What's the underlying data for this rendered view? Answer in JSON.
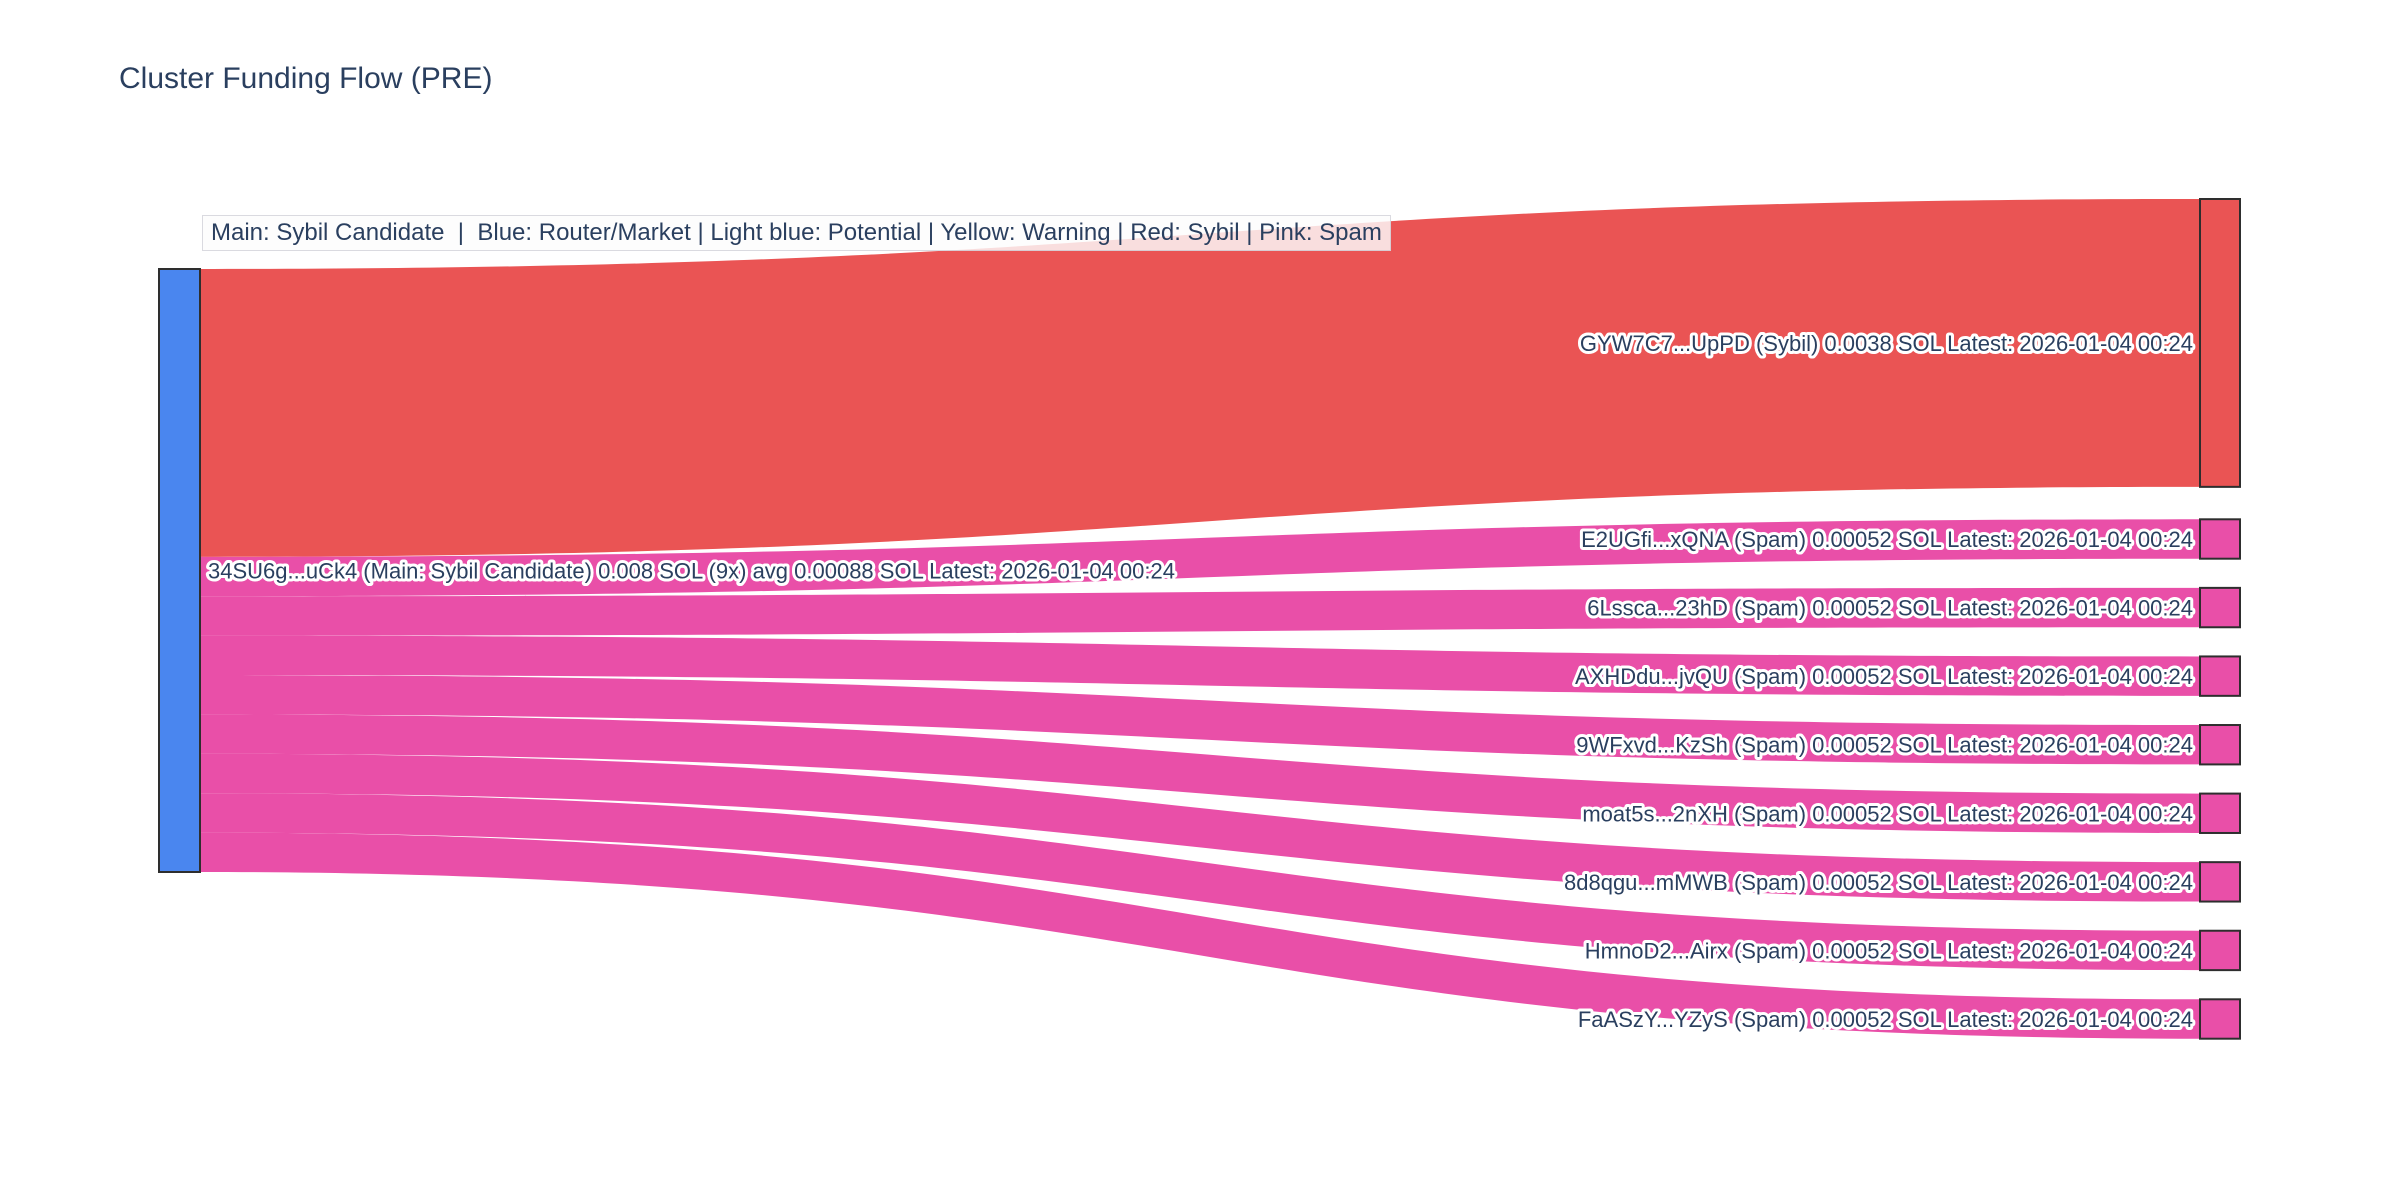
{
  "chart_data": {
    "type": "sankey",
    "title": "Cluster Funding Flow (PRE)",
    "annotation": "Main: Sybil Candidate  |  Blue: Router/Market | Light blue: Potential | Yellow: Warning | Red: Sybil | Pink: Spam",
    "unit": "SOL",
    "source": {
      "label": "34SU6g...uCk4 (Main: Sybil Candidate) 0.008 SOL (9x) avg 0.00088 SOL Latest: 2026-01-04 00:24",
      "address": "34SU6g...uCk4",
      "category": "Main: Sybil Candidate",
      "total_sol": 0.008,
      "transfer_count": "9x",
      "avg_sol": 0.00088,
      "latest": "2026-01-04 00:24",
      "color": "#4a86ef"
    },
    "targets": [
      {
        "label": "GYW7C7...UpPD (Sybil) 0.0038 SOL Latest: 2026-01-04 00:24",
        "address": "GYW7C7...UpPD",
        "category": "Sybil",
        "value_sol": 0.0038,
        "latest": "2026-01-04 00:24",
        "color": "#ea5454"
      },
      {
        "label": "E2UGfi...xQNA (Spam) 0.00052 SOL Latest: 2026-01-04 00:24",
        "address": "E2UGfi...xQNA",
        "category": "Spam",
        "value_sol": 0.00052,
        "latest": "2026-01-04 00:24",
        "color": "#e94fa8"
      },
      {
        "label": "6Lssca...23hD (Spam) 0.00052 SOL Latest: 2026-01-04 00:24",
        "address": "6Lssca...23hD",
        "category": "Spam",
        "value_sol": 0.00052,
        "latest": "2026-01-04 00:24",
        "color": "#e94fa8"
      },
      {
        "label": "AXHDdu...jvQU (Spam) 0.00052 SOL Latest: 2026-01-04 00:24",
        "address": "AXHDdu...jvQU",
        "category": "Spam",
        "value_sol": 0.00052,
        "latest": "2026-01-04 00:24",
        "color": "#e94fa8"
      },
      {
        "label": "9WFxvd...KzSh (Spam) 0.00052 SOL Latest: 2026-01-04 00:24",
        "address": "9WFxvd...KzSh",
        "category": "Spam",
        "value_sol": 0.00052,
        "latest": "2026-01-04 00:24",
        "color": "#e94fa8"
      },
      {
        "label": "moat5s...2nXH (Spam) 0.00052 SOL Latest: 2026-01-04 00:24",
        "address": "moat5s...2nXH",
        "category": "Spam",
        "value_sol": 0.00052,
        "latest": "2026-01-04 00:24",
        "color": "#e94fa8"
      },
      {
        "label": "8d8qgu...mMWB (Spam) 0.00052 SOL Latest: 2026-01-04 00:24",
        "address": "8d8qgu...mMWB",
        "category": "Spam",
        "value_sol": 0.00052,
        "latest": "2026-01-04 00:24",
        "color": "#e94fa8"
      },
      {
        "label": "HmnoD2...Airx (Spam) 0.00052 SOL Latest: 2026-01-04 00:24",
        "address": "HmnoD2...Airx",
        "category": "Spam",
        "value_sol": 0.00052,
        "latest": "2026-01-04 00:24",
        "color": "#e94fa8"
      },
      {
        "label": "FaASzY...YZyS (Spam) 0.00052 SOL Latest: 2026-01-04 00:24",
        "address": "FaASzY...YZyS",
        "category": "Spam",
        "value_sol": 0.00052,
        "latest": "2026-01-04 00:24",
        "color": "#e94fa8"
      }
    ],
    "colors": {
      "source_node": "#4a86ef",
      "sybil": "#ea5454",
      "spam": "#e94fa8",
      "node_border": "#2e2e2e",
      "text": "#2a3f5f",
      "background": "#ffffff"
    }
  }
}
